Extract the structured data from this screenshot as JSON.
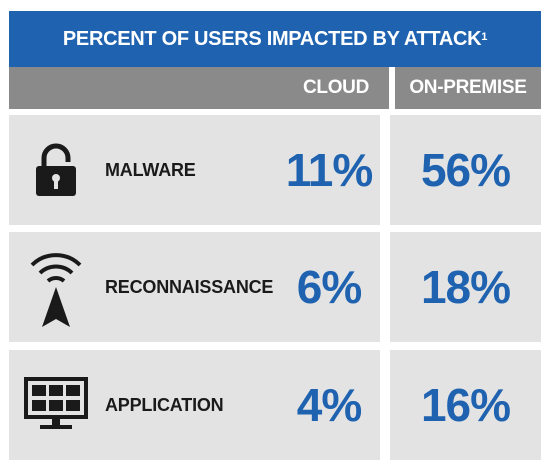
{
  "title": "PERCENT OF USERS IMPACTED BY ATTACK",
  "title_footnote": "1",
  "columns": {
    "cloud": "CLOUD",
    "on_premise": "ON-PREMISE"
  },
  "colors": {
    "header_blue": "#1e62b0",
    "header_gray": "#8a8a8a",
    "row_bg": "#e3e3e3",
    "value_blue": "#1e62b0"
  },
  "rows": [
    {
      "label": "MALWARE",
      "icon": "padlock-icon",
      "cloud": "11%",
      "on_premise": "56%"
    },
    {
      "label": "RECONNAISSANCE",
      "icon": "antenna-icon",
      "cloud": "6%",
      "on_premise": "18%"
    },
    {
      "label": "APPLICATION",
      "icon": "monitor-icon",
      "cloud": "4%",
      "on_premise": "16%"
    }
  ],
  "chart_data": {
    "type": "table",
    "title": "PERCENT OF USERS IMPACTED BY ATTACK",
    "columns": [
      "CLOUD",
      "ON-PREMISE"
    ],
    "categories": [
      "MALWARE",
      "RECONNAISSANCE",
      "APPLICATION"
    ],
    "series": [
      {
        "name": "CLOUD",
        "values": [
          11,
          6,
          4
        ]
      },
      {
        "name": "ON-PREMISE",
        "values": [
          56,
          18,
          16
        ]
      }
    ],
    "unit": "%"
  }
}
